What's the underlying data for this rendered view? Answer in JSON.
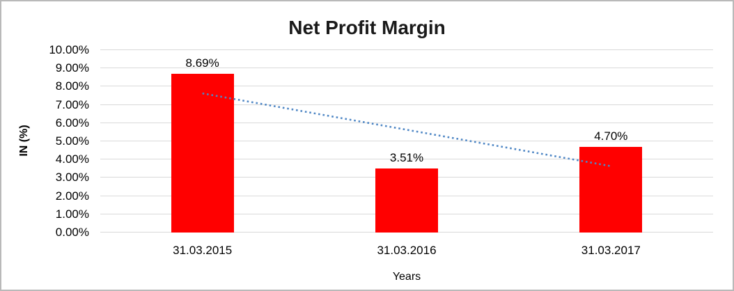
{
  "chart_data": {
    "type": "bar",
    "title": "Net Profit Margin",
    "xlabel": "Years",
    "ylabel": "IN (%)",
    "categories": [
      "31.03.2015",
      "31.03.2016",
      "31.03.2017"
    ],
    "values": [
      8.69,
      3.51,
      4.7
    ],
    "data_labels": [
      "8.69%",
      "3.51%",
      "4.70%"
    ],
    "ylim": [
      0,
      10
    ],
    "ytick_step": 1,
    "ytick_labels": [
      "0.00%",
      "1.00%",
      "2.00%",
      "3.00%",
      "4.00%",
      "5.00%",
      "6.00%",
      "7.00%",
      "8.00%",
      "9.00%",
      "10.00%"
    ],
    "grid": true,
    "legend": "none",
    "colors": {
      "bar": "#ff0000",
      "gridline": "#d9d9d9",
      "trendline": "#4f87c5",
      "text": "#000000"
    },
    "trendline": {
      "type": "linear",
      "style": "dotted"
    }
  }
}
